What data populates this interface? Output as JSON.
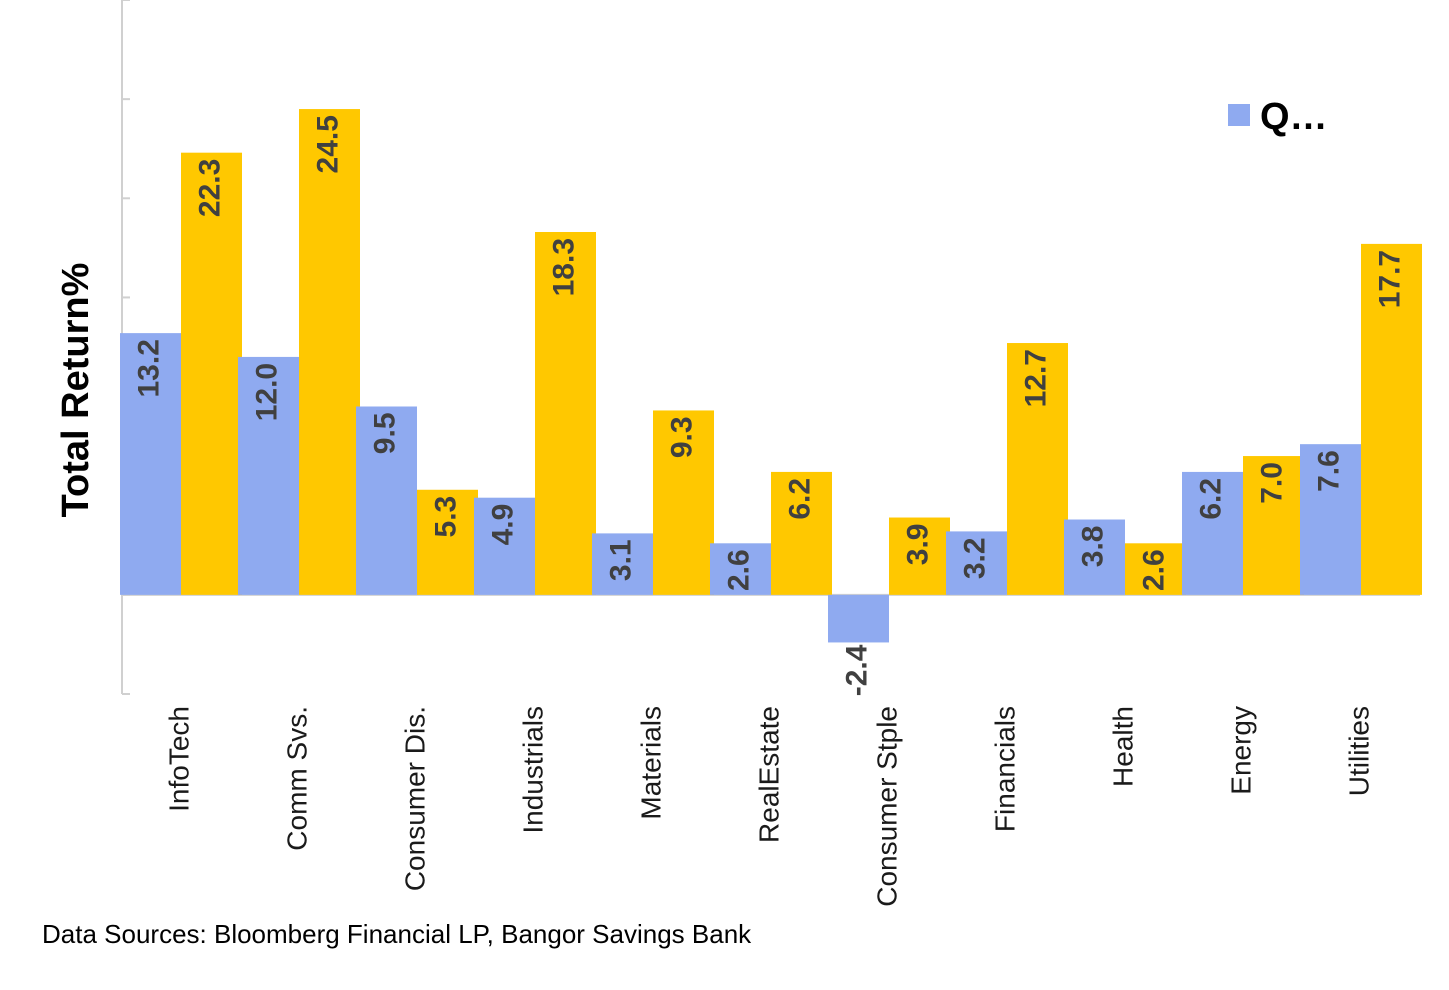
{
  "chart_data": {
    "type": "bar",
    "categories": [
      "InfoTech",
      "Comm Svs.",
      "Consumer Dis.",
      "Industrials",
      "Materials",
      "RealEstate",
      "Consumer Stple",
      "Financials",
      "Health",
      "Energy",
      "Utilities"
    ],
    "series": [
      {
        "name": "Q…",
        "color": "#8FAAF0",
        "values": [
          13.2,
          12.0,
          9.5,
          4.9,
          3.1,
          2.6,
          -2.4,
          3.2,
          3.8,
          6.2,
          7.6
        ],
        "labels": [
          "13.2",
          "12.0",
          "9.5",
          "4.9",
          "3.1",
          "2.6",
          "-2.4",
          "3.2",
          "3.8",
          "6.2",
          "7.6"
        ]
      },
      {
        "color": "#FFC800",
        "values": [
          22.3,
          24.5,
          5.3,
          18.3,
          9.3,
          6.2,
          3.9,
          12.7,
          2.6,
          7.0,
          17.7
        ],
        "labels": [
          "22.3",
          "24.5",
          "5.3",
          "18.3",
          "9.3",
          "6.2",
          "3.9",
          "12.7",
          "2.6",
          "7.0",
          "17.7"
        ]
      }
    ],
    "ylabel": "Total Return%",
    "ylim": [
      -5,
      30
    ],
    "legend_position": "top-right",
    "grid": false
  },
  "source_note": "Data Sources:  Bloomberg Financial LP, Bangor Savings Bank"
}
